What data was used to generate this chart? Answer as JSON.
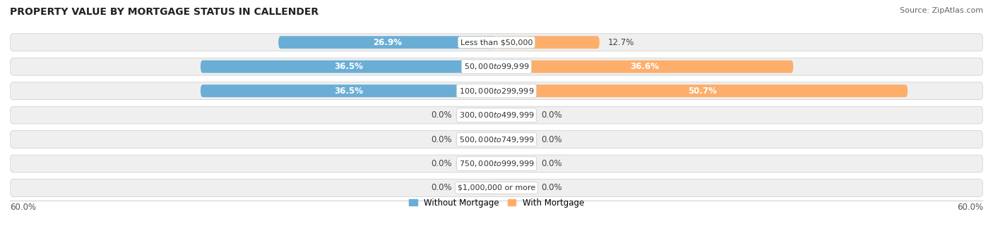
{
  "title": "PROPERTY VALUE BY MORTGAGE STATUS IN CALLENDER",
  "source": "Source: ZipAtlas.com",
  "categories": [
    "Less than $50,000",
    "$50,000 to $99,999",
    "$100,000 to $299,999",
    "$300,000 to $499,999",
    "$500,000 to $749,999",
    "$750,000 to $999,999",
    "$1,000,000 or more"
  ],
  "without_mortgage": [
    26.9,
    36.5,
    36.5,
    0.0,
    0.0,
    0.0,
    0.0
  ],
  "with_mortgage": [
    12.7,
    36.6,
    50.7,
    0.0,
    0.0,
    0.0,
    0.0
  ],
  "without_mortgage_color": "#6aaed6",
  "with_mortgage_color": "#fdae6b",
  "without_mortgage_color_light": "#b8d4e8",
  "with_mortgage_color_light": "#fddbb4",
  "row_bg_color": "#efefef",
  "row_bg_shadow": "#d8d8d8",
  "x_max": 60.0,
  "x_min": -60.0,
  "zero_stub": 5.0,
  "legend_without": "Without Mortgage",
  "legend_with": "With Mortgage",
  "title_fontsize": 10,
  "source_fontsize": 8,
  "label_fontsize": 8.5,
  "category_fontsize": 8,
  "axis_label_fontsize": 8.5
}
